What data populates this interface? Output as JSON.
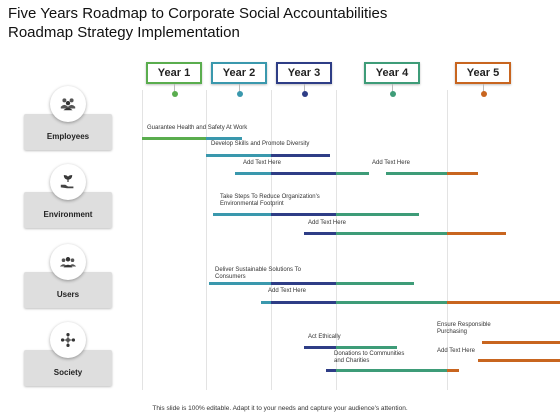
{
  "title": "Five Years Roadmap to Corporate Social Accountabilities Roadmap Strategy Implementation",
  "colors": {
    "green": "#5aad4e",
    "teal": "#3a98ad",
    "navy": "#2e3d86",
    "seagreen": "#3e9c78",
    "orange": "#c8651f"
  },
  "years": [
    {
      "label": "Year 1",
      "color": "#5aad4e"
    },
    {
      "label": "Year 2",
      "color": "#3a98ad"
    },
    {
      "label": "Year 3",
      "color": "#2e3d86"
    },
    {
      "label": "Year 4",
      "color": "#3e9c78"
    },
    {
      "label": "Year 5",
      "color": "#c8651f"
    }
  ],
  "categories": [
    {
      "label": "Employees",
      "icon": "people-group-icon"
    },
    {
      "label": "Environment",
      "icon": "hand-plant-icon"
    },
    {
      "label": "Users",
      "icon": "users-icon"
    },
    {
      "label": "Society",
      "icon": "society-icon"
    }
  ],
  "tasks": [
    {
      "label": "Guarantee Health and Safety At Work",
      "start": 0,
      "end": 1.55
    },
    {
      "label": "Develop Skills and Promote Diversity",
      "start": 1.0,
      "end": 2.9
    },
    {
      "label": "Add Text Here",
      "start": 1.45,
      "end": 3.3
    },
    {
      "label": "Add Text Here",
      "start": 3.45,
      "end": 4.4
    },
    {
      "label": "Take Steps To Reduce Organization's Environmental Footprint",
      "start": 1.1,
      "end": 3.75
    },
    {
      "label": "Add Text Here",
      "start": 2.5,
      "end": 4.75
    },
    {
      "label": "Deliver Sustainable Solutions To Consumers",
      "start": 1.05,
      "end": 3.7
    },
    {
      "label": "Add Text Here",
      "start": 1.85,
      "end": 5.8
    },
    {
      "label": "Act Ethically",
      "start": 2.5,
      "end": 3.55
    },
    {
      "label": "Donations to Communities and Charities",
      "start": 2.85,
      "end": 4.15
    },
    {
      "label": "Ensure Responsible Purchasing",
      "start": 4.45,
      "end": 5.7
    },
    {
      "label": "Add Text Here",
      "start": 4.4,
      "end": 5.7
    }
  ],
  "footer": "This slide is 100% editable. Adapt it to your needs and capture your audience's attention."
}
